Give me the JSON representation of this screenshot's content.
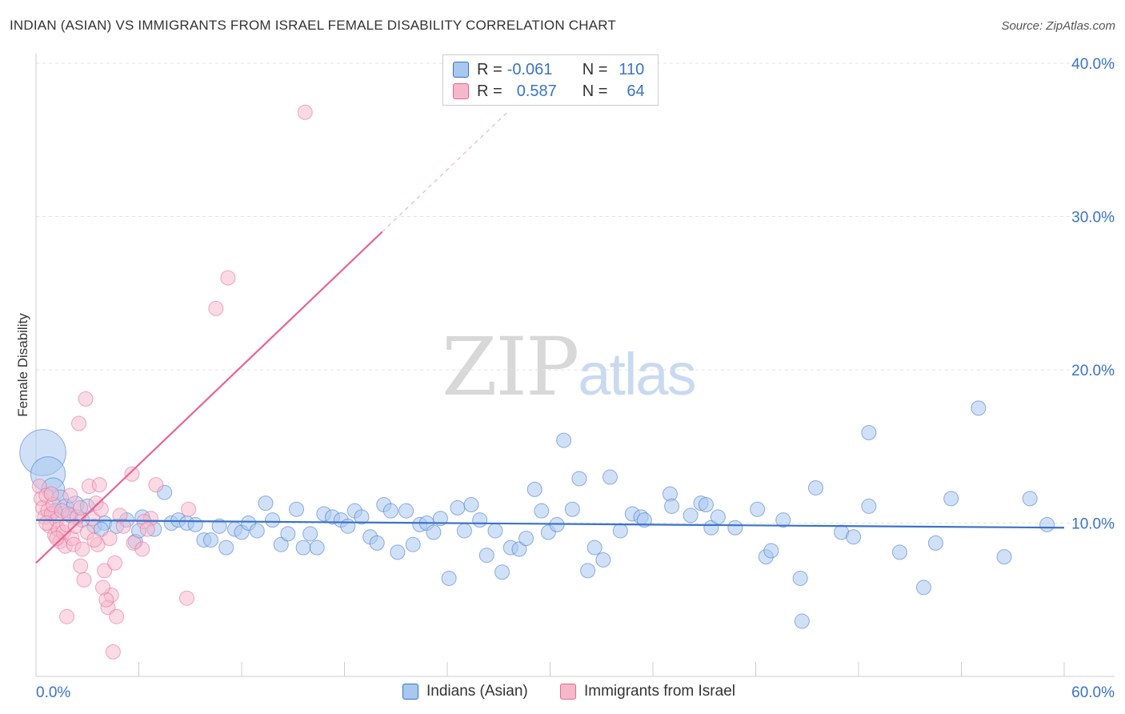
{
  "title": "INDIAN (ASIAN) VS IMMIGRANTS FROM ISRAEL FEMALE DISABILITY CORRELATION CHART",
  "source": "Source: ZipAtlas.com",
  "watermark": {
    "zip": "ZIP",
    "atlas": "atlas"
  },
  "stats": {
    "r_label": "R =",
    "n_label": "N =",
    "series1": {
      "r": "-0.061",
      "n": "110"
    },
    "series2": {
      "r": "0.587",
      "n": "64"
    }
  },
  "legend": {
    "series1": "Indians (Asian)",
    "series2": "Immigrants from Israel"
  },
  "chart_data": {
    "type": "scatter",
    "title": "INDIAN (ASIAN) VS IMMIGRANTS FROM ISRAEL FEMALE DISABILITY CORRELATION CHART",
    "xlabel": "",
    "ylabel": "Female Disability",
    "xlim": [
      0,
      60
    ],
    "ylim": [
      0,
      40
    ],
    "x_tick_labels": [
      "0.0%",
      "60.0%"
    ],
    "y_tick_labels": [
      "10.0%",
      "20.0%",
      "30.0%",
      "40.0%"
    ],
    "y_ticks": [
      10,
      20,
      30,
      40
    ],
    "grid": true,
    "colors": {
      "series1": "#3a73c9",
      "series2": "#e8668f",
      "series1_fill": "#a9c8f0",
      "series2_fill": "#f5b8cb",
      "axis_text": "#3a73c9"
    },
    "series": [
      {
        "name": "Indians (Asian)",
        "r": -0.061,
        "n": 110,
        "trend": {
          "x0": 0,
          "y0": 10.2,
          "x1": 60,
          "y1": 9.7
        },
        "points": [
          [
            0.4,
            14.6,
            3.2
          ],
          [
            0.7,
            13.2,
            2.4
          ],
          [
            1.0,
            12.2,
            1.6
          ],
          [
            1.4,
            11.6,
            1.2
          ],
          [
            1.7,
            11.0,
            1.2
          ],
          [
            2.3,
            11.2,
            1.2
          ],
          [
            3.0,
            11.1,
            1.0
          ],
          [
            3.4,
            9.8,
            1.0
          ],
          [
            4.0,
            10.0,
            1.0
          ],
          [
            4.7,
            9.8,
            1.0
          ],
          [
            5.3,
            10.2,
            1.0
          ],
          [
            5.8,
            8.8,
            1.0
          ],
          [
            6.2,
            10.4,
            1.0
          ],
          [
            6.9,
            9.6,
            1.0
          ],
          [
            7.5,
            12.0,
            1.0
          ],
          [
            7.9,
            10.0,
            1.0
          ],
          [
            8.3,
            10.2,
            1.0
          ],
          [
            8.8,
            10.0,
            1.0
          ],
          [
            9.3,
            9.9,
            1.0
          ],
          [
            9.8,
            8.9,
            1.0
          ],
          [
            10.2,
            8.9,
            1.0
          ],
          [
            10.7,
            9.8,
            1.0
          ],
          [
            11.1,
            8.4,
            1.0
          ],
          [
            11.6,
            9.6,
            1.0
          ],
          [
            12.0,
            9.4,
            1.0
          ],
          [
            12.4,
            10.0,
            1.0
          ],
          [
            12.9,
            9.5,
            1.0
          ],
          [
            13.4,
            11.3,
            1.0
          ],
          [
            13.8,
            10.2,
            1.0
          ],
          [
            14.3,
            8.6,
            1.0
          ],
          [
            14.7,
            9.3,
            1.0
          ],
          [
            15.2,
            10.9,
            1.0
          ],
          [
            15.6,
            8.4,
            1.0
          ],
          [
            16.0,
            9.3,
            1.0
          ],
          [
            16.4,
            8.4,
            1.0
          ],
          [
            16.8,
            10.6,
            1.0
          ],
          [
            17.3,
            10.4,
            1.0
          ],
          [
            17.8,
            10.2,
            1.0
          ],
          [
            18.2,
            9.8,
            1.0
          ],
          [
            18.6,
            10.8,
            1.0
          ],
          [
            19.0,
            10.4,
            1.0
          ],
          [
            19.5,
            9.1,
            1.0
          ],
          [
            19.9,
            8.7,
            1.0
          ],
          [
            20.3,
            11.2,
            1.0
          ],
          [
            20.7,
            10.8,
            1.0
          ],
          [
            21.1,
            8.1,
            1.0
          ],
          [
            21.6,
            10.8,
            1.0
          ],
          [
            22.0,
            8.6,
            1.0
          ],
          [
            22.4,
            9.9,
            1.0
          ],
          [
            22.8,
            10.0,
            1.0
          ],
          [
            23.2,
            9.4,
            1.0
          ],
          [
            23.6,
            10.3,
            1.0
          ],
          [
            24.1,
            6.4,
            1.0
          ],
          [
            24.6,
            11.0,
            1.0
          ],
          [
            25.0,
            9.5,
            1.0
          ],
          [
            25.4,
            11.2,
            1.0
          ],
          [
            25.9,
            10.2,
            1.0
          ],
          [
            26.3,
            7.9,
            1.0
          ],
          [
            26.8,
            9.5,
            1.0
          ],
          [
            27.2,
            6.8,
            1.0
          ],
          [
            27.7,
            8.4,
            1.0
          ],
          [
            28.2,
            8.3,
            1.0
          ],
          [
            28.6,
            9.0,
            1.0
          ],
          [
            29.1,
            12.2,
            1.0
          ],
          [
            29.5,
            10.8,
            1.0
          ],
          [
            29.9,
            9.4,
            1.0
          ],
          [
            30.4,
            9.9,
            1.0
          ],
          [
            30.8,
            15.4,
            1.0
          ],
          [
            31.3,
            10.9,
            1.0
          ],
          [
            31.7,
            12.9,
            1.0
          ],
          [
            32.2,
            6.9,
            1.0
          ],
          [
            32.6,
            8.4,
            1.0
          ],
          [
            33.1,
            7.6,
            1.0
          ],
          [
            33.5,
            13.0,
            1.0
          ],
          [
            34.1,
            9.5,
            1.0
          ],
          [
            34.8,
            10.6,
            1.0
          ],
          [
            35.3,
            10.4,
            1.0
          ],
          [
            35.5,
            10.2,
            1.0
          ],
          [
            37.0,
            11.9,
            1.0
          ],
          [
            37.1,
            11.1,
            1.0
          ],
          [
            38.2,
            10.5,
            1.0
          ],
          [
            38.8,
            11.3,
            1.0
          ],
          [
            39.1,
            11.2,
            1.0
          ],
          [
            39.4,
            9.7,
            1.0
          ],
          [
            39.8,
            10.4,
            1.0
          ],
          [
            40.8,
            9.7,
            1.0
          ],
          [
            42.1,
            10.9,
            1.0
          ],
          [
            42.6,
            7.8,
            1.0
          ],
          [
            42.9,
            8.2,
            1.0
          ],
          [
            43.6,
            10.2,
            1.0
          ],
          [
            44.6,
            6.4,
            1.0
          ],
          [
            44.7,
            3.6,
            1.0
          ],
          [
            45.5,
            12.3,
            1.0
          ],
          [
            47.0,
            9.4,
            1.0
          ],
          [
            47.7,
            9.1,
            1.0
          ],
          [
            48.6,
            15.9,
            1.0
          ],
          [
            48.6,
            11.1,
            1.0
          ],
          [
            50.4,
            8.1,
            1.0
          ],
          [
            51.8,
            5.8,
            1.0
          ],
          [
            52.5,
            8.7,
            1.0
          ],
          [
            53.4,
            11.6,
            1.0
          ],
          [
            55.0,
            17.5,
            1.0
          ],
          [
            56.5,
            7.8,
            1.0
          ],
          [
            58.0,
            11.6,
            1.0
          ],
          [
            59.0,
            9.9,
            1.0
          ],
          [
            1.1,
            10.8,
            1.0
          ],
          [
            2.0,
            10.5,
            1.0
          ],
          [
            2.7,
            10.2,
            1.0
          ],
          [
            3.8,
            9.6,
            1.0
          ],
          [
            6.0,
            9.5,
            1.0
          ]
        ]
      },
      {
        "name": "Immigrants from Israel",
        "r": 0.587,
        "n": 64,
        "trend": {
          "x0": 0,
          "y0": 7.4,
          "x1": 20.2,
          "y1": 29.0,
          "dash_x1": 27.5,
          "dash_y1": 36.8
        },
        "points": [
          [
            0.2,
            12.4,
            1.0
          ],
          [
            0.3,
            11.6,
            1.0
          ],
          [
            0.4,
            11.0,
            1.0
          ],
          [
            0.5,
            10.4,
            1.0
          ],
          [
            0.6,
            11.8,
            1.0
          ],
          [
            0.7,
            10.8,
            1.0
          ],
          [
            0.8,
            9.8,
            1.0
          ],
          [
            0.9,
            10.6,
            1.0
          ],
          [
            1.0,
            11.2,
            1.0
          ],
          [
            1.1,
            9.2,
            1.0
          ],
          [
            1.2,
            10.2,
            1.0
          ],
          [
            1.3,
            9.6,
            1.0
          ],
          [
            1.4,
            8.8,
            1.0
          ],
          [
            1.5,
            10.8,
            1.0
          ],
          [
            1.6,
            9.4,
            1.0
          ],
          [
            1.7,
            8.5,
            1.0
          ],
          [
            1.8,
            9.9,
            1.0
          ],
          [
            1.9,
            10.6,
            1.0
          ],
          [
            2.0,
            11.8,
            1.0
          ],
          [
            2.1,
            9.0,
            1.0
          ],
          [
            2.2,
            8.6,
            1.0
          ],
          [
            2.4,
            10.4,
            1.0
          ],
          [
            2.5,
            16.5,
            1.0
          ],
          [
            2.6,
            7.2,
            1.0
          ],
          [
            2.7,
            8.3,
            1.0
          ],
          [
            2.9,
            18.1,
            1.0
          ],
          [
            3.0,
            9.4,
            1.0
          ],
          [
            3.1,
            12.4,
            1.0
          ],
          [
            3.3,
            10.3,
            1.0
          ],
          [
            3.5,
            11.3,
            1.0
          ],
          [
            3.6,
            8.6,
            1.0
          ],
          [
            3.7,
            12.5,
            1.0
          ],
          [
            3.8,
            10.9,
            1.0
          ],
          [
            4.0,
            6.9,
            1.0
          ],
          [
            4.2,
            4.5,
            1.0
          ],
          [
            4.3,
            9.0,
            1.0
          ],
          [
            4.4,
            5.3,
            1.0
          ],
          [
            4.5,
            1.6,
            1.0
          ],
          [
            4.6,
            7.4,
            1.0
          ],
          [
            4.7,
            3.9,
            1.0
          ],
          [
            4.1,
            5.0,
            1.0
          ],
          [
            3.9,
            5.8,
            1.0
          ],
          [
            2.8,
            6.3,
            1.0
          ],
          [
            1.8,
            3.9,
            1.0
          ],
          [
            4.9,
            10.5,
            1.0
          ],
          [
            5.1,
            9.8,
            1.0
          ],
          [
            5.6,
            13.2,
            1.0
          ],
          [
            5.7,
            8.7,
            1.0
          ],
          [
            6.2,
            8.3,
            1.0
          ],
          [
            6.7,
            10.3,
            1.0
          ],
          [
            6.3,
            10.1,
            1.0
          ],
          [
            6.5,
            9.6,
            1.0
          ],
          [
            7.0,
            12.5,
            1.0
          ],
          [
            8.8,
            5.1,
            1.0
          ],
          [
            8.9,
            10.9,
            1.0
          ],
          [
            10.5,
            24.0,
            1.0
          ],
          [
            11.2,
            26.0,
            1.0
          ],
          [
            15.7,
            36.8,
            1.0
          ],
          [
            1.2,
            9.0,
            1.0
          ],
          [
            2.3,
            9.8,
            1.0
          ],
          [
            0.9,
            11.9,
            1.0
          ],
          [
            3.4,
            8.9,
            1.0
          ],
          [
            2.6,
            11.0,
            1.0
          ],
          [
            0.6,
            10.0,
            1.0
          ]
        ]
      }
    ]
  }
}
